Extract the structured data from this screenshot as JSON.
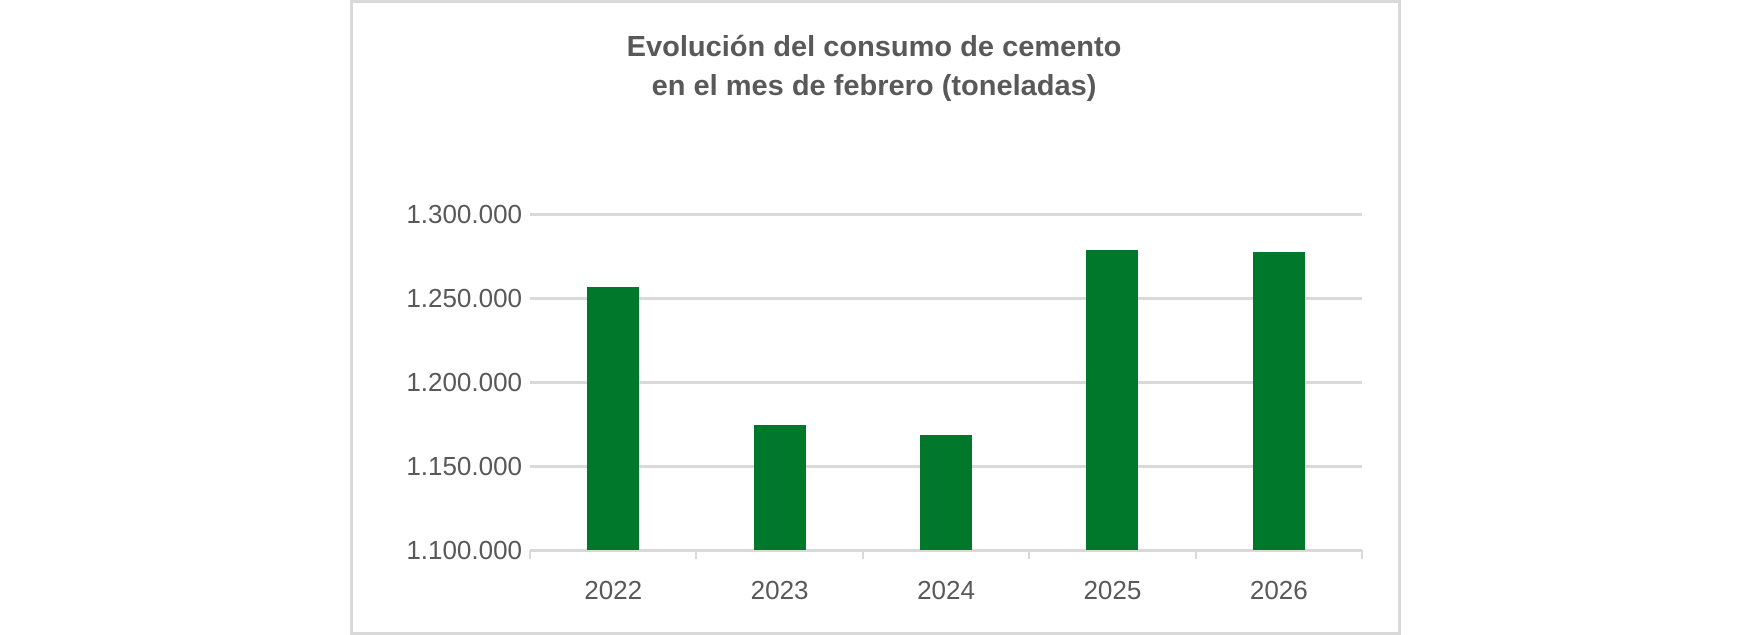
{
  "chart_data": {
    "type": "bar",
    "title": "Evolución del consumo de cemento en el mes de febrero (toneladas)",
    "title_lines": [
      "Evolución del consumo de cemento",
      "en el mes de febrero (toneladas)"
    ],
    "categories": [
      "2022",
      "2023",
      "2024",
      "2025",
      "2026"
    ],
    "values": [
      1256500,
      1174500,
      1168500,
      1278500,
      1277500
    ],
    "xlabel": "",
    "ylabel": "",
    "ylim": [
      1100000,
      1300000
    ],
    "yticks": [
      1100000,
      1150000,
      1200000,
      1250000,
      1300000
    ],
    "ytick_labels": [
      "1.100.000",
      "1.150.000",
      "1.200.000",
      "1.250.000",
      "1.300.000"
    ],
    "grid": true,
    "legend": null,
    "colors": {
      "bar": "#00782b",
      "grid": "#d9d9d9",
      "text": "#595959",
      "border": "#d9d9d9"
    }
  }
}
